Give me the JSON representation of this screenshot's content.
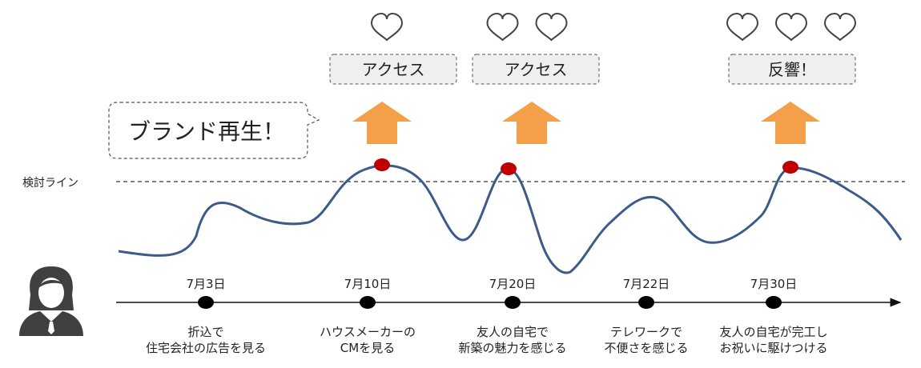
{
  "bubble": {
    "text": "ブランド再生！"
  },
  "threshold": {
    "label": "検討ライン"
  },
  "reactions": [
    {
      "text": "アクセス",
      "hearts": 1
    },
    {
      "text": "アクセス",
      "hearts": 2
    },
    {
      "text": "反響！",
      "hearts": 3
    }
  ],
  "events": [
    {
      "date": "7月3日",
      "lines": [
        "折込で",
        "住宅会社の広告を見る"
      ]
    },
    {
      "date": "7月10日",
      "lines": [
        "ハウスメーカーの",
        "CMを見る"
      ]
    },
    {
      "date": "7月20日",
      "lines": [
        "友人の自宅で",
        "新築の魅力を感じる"
      ]
    },
    {
      "date": "7月22日",
      "lines": [
        "テレワークで",
        "不便さを感じる"
      ]
    },
    {
      "date": "7月30日",
      "lines": [
        "友人の自宅が完工し",
        "お祝いに駆けつける"
      ]
    }
  ],
  "colors": {
    "curve": "#3d5a8a",
    "arrow": "#f4a04a",
    "peak": "#c00000",
    "box_fill": "#efefef",
    "heart_stroke": "#444444"
  },
  "icons": {
    "persona": "businesswoman-icon",
    "heart": "heart-icon",
    "arrow": "up-arrow-icon"
  }
}
